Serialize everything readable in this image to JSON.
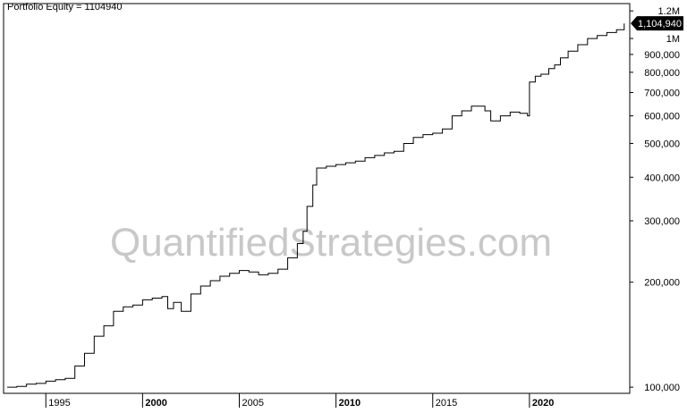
{
  "title": "Portfolio Equity = 1104940",
  "watermark": "QuantifiedStrategies.com",
  "chart_data": {
    "type": "line",
    "title": "Portfolio Equity = 1104940",
    "yscale": "log",
    "xlim": [
      1993.0,
      2025.0
    ],
    "ylim": [
      96000,
      1230000
    ],
    "last_value_label": "1,104,940",
    "last_value": 1104940,
    "yticks": [
      {
        "label": "1.2M",
        "value": 1200000
      },
      {
        "label": "1M",
        "value": 1000000
      },
      {
        "label": "900,000",
        "value": 900000
      },
      {
        "label": "800,000",
        "value": 800000
      },
      {
        "label": "700,000",
        "value": 700000
      },
      {
        "label": "600,000",
        "value": 600000
      },
      {
        "label": "500,000",
        "value": 500000
      },
      {
        "label": "400,000",
        "value": 400000
      },
      {
        "label": "300,000",
        "value": 300000
      },
      {
        "label": "200,000",
        "value": 200000
      },
      {
        "label": "100,000",
        "value": 100000
      }
    ],
    "xticks": [
      {
        "label": "1995",
        "value": 1995,
        "major": false
      },
      {
        "label": "2000",
        "value": 2000,
        "major": true
      },
      {
        "label": "2005",
        "value": 2005,
        "major": false
      },
      {
        "label": "2010",
        "value": 2010,
        "major": true
      },
      {
        "label": "2015",
        "value": 2015,
        "major": false
      },
      {
        "label": "2020",
        "value": 2020,
        "major": true
      }
    ],
    "series": [
      {
        "x": [
          1993.0,
          1993.5,
          1994.0,
          1994.5,
          1995.0,
          1995.5,
          1996.0,
          1996.5,
          1997.0,
          1997.5,
          1998.0,
          1998.5,
          1999.0,
          1999.5,
          2000.0,
          2000.5,
          2001.0,
          2001.3,
          2001.6,
          2002.0,
          2002.5,
          2003.0,
          2003.5,
          2004.0,
          2004.5,
          2005.0,
          2005.5,
          2006.0,
          2006.5,
          2007.0,
          2007.5,
          2008.0,
          2008.3,
          2008.5,
          2008.8,
          2009.0,
          2009.5,
          2010.0,
          2010.5,
          2011.0,
          2011.5,
          2012.0,
          2012.5,
          2013.0,
          2013.5,
          2014.0,
          2014.5,
          2015.0,
          2015.5,
          2016.0,
          2016.5,
          2017.0,
          2017.5,
          2017.7,
          2018.0,
          2018.5,
          2019.0,
          2019.5,
          2019.9,
          2020.0,
          2020.3,
          2020.6,
          2021.0,
          2021.3,
          2021.6,
          2022.0,
          2022.5,
          2023.0,
          2023.5,
          2024.0,
          2024.5,
          2024.9
        ],
        "y": [
          100000,
          100500,
          102000,
          102500,
          104000,
          105000,
          106000,
          115000,
          125000,
          140000,
          150000,
          165000,
          170000,
          172000,
          178000,
          180000,
          182000,
          168000,
          175000,
          165000,
          185000,
          195000,
          202000,
          208000,
          212000,
          216000,
          214000,
          210000,
          212000,
          218000,
          235000,
          258000,
          280000,
          330000,
          380000,
          425000,
          430000,
          435000,
          440000,
          445000,
          455000,
          462000,
          470000,
          475000,
          500000,
          520000,
          530000,
          535000,
          550000,
          600000,
          620000,
          640000,
          640000,
          620000,
          580000,
          600000,
          615000,
          610000,
          600000,
          750000,
          780000,
          790000,
          820000,
          840000,
          880000,
          920000,
          960000,
          1000000,
          1020000,
          1040000,
          1060000,
          1104940
        ]
      }
    ]
  }
}
